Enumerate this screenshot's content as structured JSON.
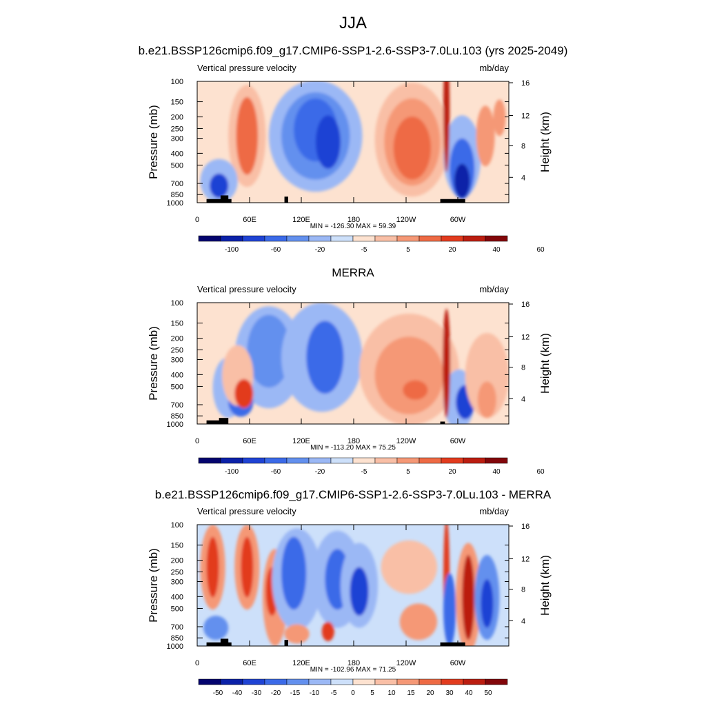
{
  "page_title": "JJA",
  "chart_data": [
    {
      "type": "heatmap",
      "title": "b.e21.BSSP126cmip6.f09_g17.CMIP6-SSP1-2.6-SSP3-7.0Lu.103 (yrs 2025-2049)",
      "left_label": "Vertical pressure velocity",
      "right_label": "mb/day",
      "ylabel": "Pressure (mb)",
      "ylabel_right": "Height (km)",
      "x_ticks": [
        "0",
        "60E",
        "120E",
        "180",
        "120W",
        "60W"
      ],
      "y_ticks": [
        "100",
        "150",
        "200",
        "250",
        "300",
        "400",
        "500",
        "700",
        "850",
        "1000"
      ],
      "y_ticks_right": [
        "16",
        "12",
        "8",
        "4"
      ],
      "stats": "MIN = -126.30  MAX =  59.39",
      "colorbar_ticks": [
        "-100",
        "-60",
        "-20",
        "-5",
        "5",
        "20",
        "40",
        "60"
      ],
      "ylim": [
        1000,
        100
      ],
      "xlim": [
        0,
        360
      ]
    },
    {
      "type": "heatmap",
      "title": "MERRA",
      "left_label": "Vertical pressure velocity",
      "right_label": "mb/day",
      "ylabel": "Pressure (mb)",
      "ylabel_right": "Height (km)",
      "x_ticks": [
        "0",
        "60E",
        "120E",
        "180",
        "120W",
        "60W"
      ],
      "y_ticks": [
        "100",
        "150",
        "200",
        "250",
        "300",
        "400",
        "500",
        "700",
        "850",
        "1000"
      ],
      "y_ticks_right": [
        "16",
        "12",
        "8",
        "4"
      ],
      "stats": "MIN = -113.20  MAX =  75.25",
      "colorbar_ticks": [
        "-100",
        "-60",
        "-20",
        "-5",
        "5",
        "20",
        "40",
        "60"
      ],
      "ylim": [
        1000,
        100
      ],
      "xlim": [
        0,
        360
      ]
    },
    {
      "type": "heatmap",
      "title": "b.e21.BSSP126cmip6.f09_g17.CMIP6-SSP1-2.6-SSP3-7.0Lu.103 - MERRA",
      "left_label": "Vertical pressure velocity",
      "right_label": "mb/day",
      "ylabel": "Pressure (mb)",
      "ylabel_right": "Height (km)",
      "x_ticks": [
        "0",
        "60E",
        "120E",
        "180",
        "120W",
        "60W"
      ],
      "y_ticks": [
        "100",
        "150",
        "200",
        "250",
        "300",
        "400",
        "500",
        "700",
        "850",
        "1000"
      ],
      "y_ticks_right": [
        "16",
        "12",
        "8",
        "4"
      ],
      "stats": "MIN = -102.96  MAX =  71.25",
      "colorbar_ticks": [
        "-50",
        "-40",
        "-30",
        "-20",
        "-15",
        "-10",
        "-5",
        "0",
        "5",
        "10",
        "15",
        "20",
        "30",
        "40",
        "50"
      ],
      "ylim": [
        1000,
        100
      ],
      "xlim": [
        0,
        360
      ]
    }
  ],
  "colors": {
    "palette": [
      "#04046e",
      "#0b21a8",
      "#1f43d4",
      "#3b6ae8",
      "#6390ee",
      "#9bb8f5",
      "#cde0fa",
      "#fde2d0",
      "#f9bfa6",
      "#f59876",
      "#ee6a44",
      "#e23b1e",
      "#bb1d10",
      "#82060a"
    ]
  }
}
